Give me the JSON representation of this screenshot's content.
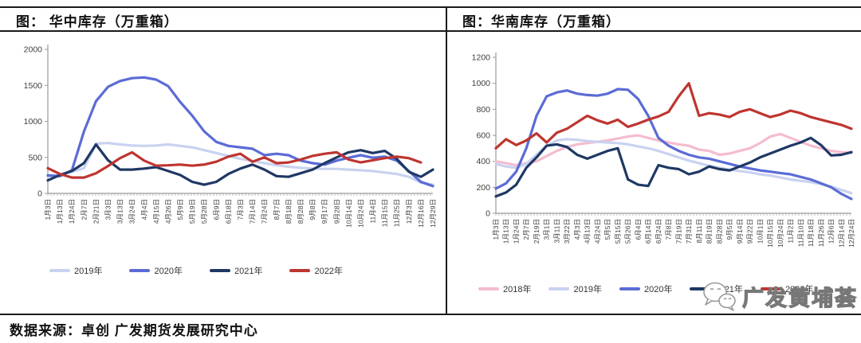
{
  "page": {
    "source_note": "数据来源：卓创 广发期货发展研究中心",
    "watermark": {
      "icon": "wechat-logo-icon",
      "text": "广发黄埔荟"
    }
  },
  "chart_data": [
    {
      "type": "line",
      "title": "图：  华中库存（万重箱）",
      "xlabel": "",
      "ylabel": "",
      "ylim": [
        0,
        2000
      ],
      "yticks": [
        0,
        500,
        1000,
        1500,
        2000
      ],
      "grid": false,
      "legend_position": "bottom",
      "x_labels": [
        "1月3日",
        "1月13日",
        "1月24日",
        "2月7日",
        "2月21日",
        "3月3日",
        "3月13日",
        "3月24日",
        "4月4日",
        "4月15日",
        "4月26日",
        "5月9日",
        "5月19日",
        "5月28日",
        "6月9日",
        "6月18日",
        "7月3日",
        "7月14日",
        "7月24日",
        "8月7日",
        "8月18日",
        "8月28日",
        "9月8日",
        "9月17日",
        "9月28日",
        "10月14日",
        "10月24日",
        "11月4日",
        "11月15日",
        "11月25日",
        "12月3日",
        "12月16日",
        "12月29日"
      ],
      "series": [
        {
          "name": "2019年",
          "color": "#C9D2F0",
          "values": [
            230,
            260,
            300,
            350,
            690,
            700,
            680,
            665,
            660,
            665,
            680,
            660,
            640,
            600,
            560,
            520,
            480,
            450,
            420,
            390,
            370,
            355,
            345,
            340,
            340,
            330,
            320,
            310,
            290,
            270,
            230,
            150,
            120
          ]
        },
        {
          "name": "2020年",
          "color": "#5B6BD5",
          "values": [
            250,
            240,
            320,
            860,
            1280,
            1480,
            1560,
            1600,
            1610,
            1580,
            1490,
            1270,
            1080,
            860,
            715,
            660,
            640,
            620,
            530,
            550,
            530,
            455,
            420,
            400,
            455,
            495,
            530,
            495,
            510,
            455,
            310,
            160,
            100
          ]
        },
        {
          "name": "2021年",
          "color": "#1F3864",
          "values": [
            180,
            255,
            310,
            420,
            680,
            460,
            330,
            330,
            345,
            365,
            310,
            255,
            160,
            120,
            160,
            270,
            345,
            400,
            330,
            240,
            230,
            280,
            330,
            420,
            500,
            570,
            600,
            560,
            590,
            480,
            300,
            230,
            330
          ]
        },
        {
          "name": "2022年",
          "color": "#BE3530",
          "values": [
            350,
            270,
            220,
            220,
            280,
            380,
            490,
            570,
            455,
            385,
            390,
            400,
            385,
            400,
            440,
            510,
            550,
            440,
            500,
            420,
            430,
            470,
            520,
            550,
            570,
            470,
            430,
            460,
            490,
            510,
            490,
            430,
            null
          ]
        }
      ]
    },
    {
      "type": "line",
      "title": "图：华南库存（万重箱）",
      "xlabel": "",
      "ylabel": "",
      "ylim": [
        0,
        1200
      ],
      "yticks": [
        0,
        200,
        400,
        600,
        800,
        1000,
        1200
      ],
      "grid": false,
      "legend_position": "bottom",
      "x_labels": [
        "1月3日",
        "1月13日",
        "1月24日",
        "2月7日",
        "2月19日",
        "3月1日",
        "3月11日",
        "3月22日",
        "4月3日",
        "4月13日",
        "4月24日",
        "5月5日",
        "5月15日",
        "5月26日",
        "6月4日",
        "6月14日",
        "6月24日",
        "7月8日",
        "7月19日",
        "7月31日",
        "8月11日",
        "8月19日",
        "8月28日",
        "9月5日",
        "9月14日",
        "9月22日",
        "10月1日",
        "10月15日",
        "10月24日",
        "11月2日",
        "11月10日",
        "11月18日",
        "11月26日",
        "12月6日",
        "12月14日",
        "12月24日"
      ],
      "series": [
        {
          "name": "2018年",
          "color": "#F5BCCF",
          "values": [
            400,
            385,
            370,
            385,
            400,
            440,
            480,
            510,
            530,
            540,
            550,
            560,
            575,
            590,
            600,
            580,
            560,
            545,
            530,
            520,
            490,
            480,
            450,
            460,
            480,
            500,
            540,
            590,
            610,
            580,
            550,
            520,
            500,
            480,
            470,
            465
          ]
        },
        {
          "name": "2019年",
          "color": "#C9D2F0",
          "values": [
            380,
            360,
            350,
            380,
            450,
            520,
            560,
            570,
            565,
            555,
            550,
            545,
            540,
            530,
            515,
            500,
            480,
            455,
            430,
            405,
            385,
            365,
            350,
            335,
            325,
            315,
            300,
            290,
            275,
            260,
            250,
            240,
            225,
            205,
            180,
            155
          ]
        },
        {
          "name": "2020年",
          "color": "#5B6BD5",
          "values": [
            190,
            230,
            320,
            500,
            750,
            900,
            930,
            945,
            920,
            910,
            905,
            920,
            955,
            950,
            880,
            750,
            580,
            520,
            480,
            450,
            430,
            420,
            400,
            380,
            360,
            345,
            330,
            320,
            310,
            300,
            280,
            260,
            230,
            200,
            150,
            110
          ]
        },
        {
          "name": "2021年",
          "color": "#1F3864",
          "values": [
            130,
            160,
            220,
            350,
            430,
            520,
            530,
            510,
            450,
            420,
            450,
            480,
            500,
            260,
            220,
            210,
            370,
            350,
            340,
            300,
            320,
            360,
            340,
            330,
            360,
            390,
            430,
            460,
            490,
            520,
            545,
            580,
            525,
            445,
            450,
            470
          ]
        },
        {
          "name": "2022年",
          "color": "#BE3530",
          "values": [
            500,
            570,
            525,
            560,
            615,
            545,
            620,
            650,
            700,
            750,
            715,
            690,
            720,
            665,
            690,
            720,
            745,
            780,
            900,
            1000,
            750,
            770,
            760,
            740,
            780,
            800,
            770,
            740,
            760,
            790,
            770,
            740,
            720,
            700,
            680,
            650
          ]
        }
      ]
    }
  ]
}
